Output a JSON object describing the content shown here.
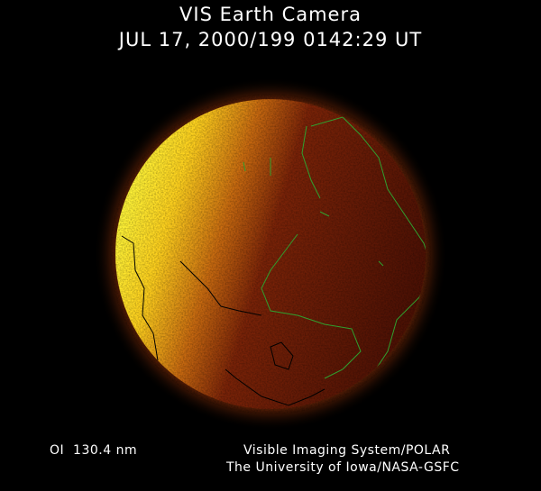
{
  "header": {
    "title": "VIS Earth Camera",
    "timestamp": "JUL 17, 2000/199 0142:29 UT"
  },
  "footer": {
    "band": "OI  130.4 nm",
    "instrument": "Visible Imaging System/POLAR",
    "institution": "The University of Iowa/NASA-GSFC"
  },
  "image": {
    "subject": "earth-far-ultraviolet-image",
    "colors": {
      "bright_limb": "#ffff30",
      "mid": "#e08a10",
      "dark_disk": "#5a1405",
      "coastline_day": "#000000",
      "coastline_night": "#2fa02f"
    }
  }
}
